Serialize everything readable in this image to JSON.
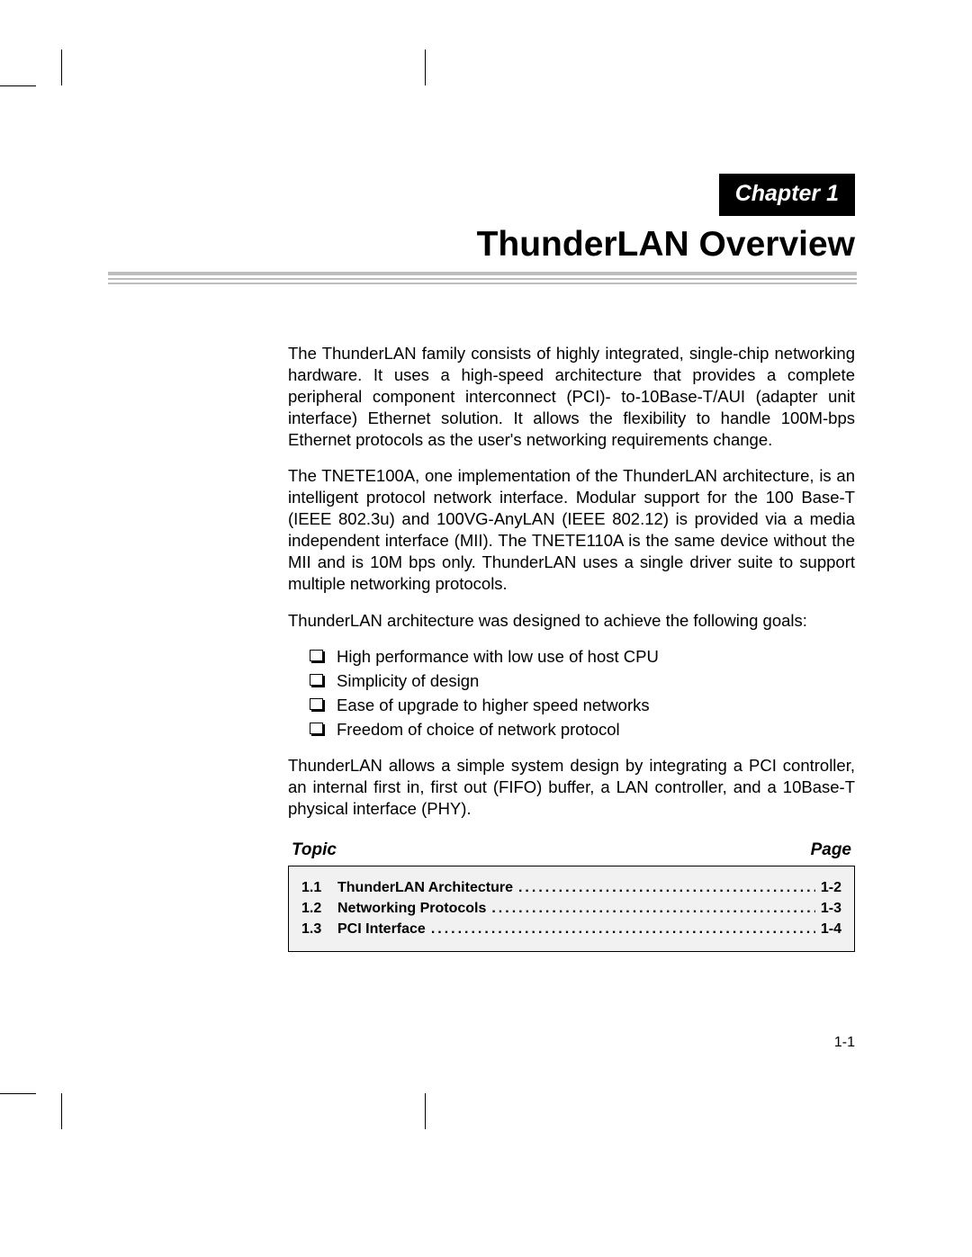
{
  "chapter_label": "Chapter 1",
  "title": "ThunderLAN Overview",
  "paragraphs": {
    "p1": "The ThunderLAN family consists of highly integrated, single-chip networking hardware. It uses a high-speed architecture that provides a complete peripheral component interconnect (PCI)- to-10Base-T/AUI (adapter unit interface) Ethernet solution. It allows the flexibility to handle 100M-bps Ethernet protocols as the user's networking requirements change.",
    "p2": "The TNETE100A, one implementation of the ThunderLAN architecture, is an intelligent protocol network interface. Modular support for the 100 Base-T (IEEE 802.3u) and 100VG-AnyLAN (IEEE 802.12) is provided via a media independent interface (MII). The TNETE110A is the same device without the MII and is 10M bps only. ThunderLAN uses a single driver suite to support multiple networking protocols.",
    "p3": "ThunderLAN architecture was designed to achieve the following  goals:",
    "p4": "ThunderLAN allows a simple system design by integrating a PCI controller, an internal first in, first out (FIFO) buffer, a LAN controller, and a 10Base-T physical interface (PHY)."
  },
  "goals": [
    "High performance with low use of host CPU",
    "Simplicity of design",
    "Ease of upgrade to higher speed networks",
    "Freedom of choice of network protocol"
  ],
  "toc": {
    "topic_label": "Topic",
    "page_label": "Page",
    "rows": [
      {
        "num": "1.1",
        "title": "ThunderLAN Architecture",
        "page": "1-2"
      },
      {
        "num": "1.2",
        "title": "Networking Protocols",
        "page": "1-3"
      },
      {
        "num": "1.3",
        "title": "PCI Interface",
        "page": "1-4"
      }
    ]
  },
  "page_number": "1-1",
  "colors": {
    "rule": "#bdbdbd",
    "toc_bg": "#f1f1f1",
    "text": "#000000",
    "bg": "#ffffff"
  }
}
